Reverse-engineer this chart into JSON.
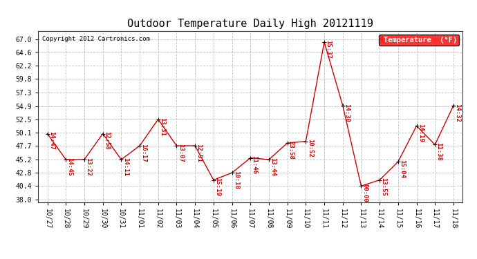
{
  "title": "Outdoor Temperature Daily High 20121119",
  "copyright": "Copyright 2012 Cartronics.com",
  "legend_label": "Temperature  (°F)",
  "dates": [
    "10/27",
    "10/28",
    "10/29",
    "10/30",
    "10/31",
    "11/01",
    "11/02",
    "11/03",
    "11/04",
    "11/05",
    "11/06",
    "11/07",
    "11/08",
    "11/09",
    "11/10",
    "11/11",
    "11/12",
    "11/13",
    "11/14",
    "11/15",
    "11/16",
    "11/17",
    "11/18"
  ],
  "temps": [
    49.9,
    45.2,
    45.2,
    49.9,
    45.2,
    47.7,
    52.5,
    47.7,
    47.7,
    41.5,
    42.8,
    45.5,
    45.2,
    48.2,
    48.5,
    66.5,
    55.0,
    40.4,
    41.5,
    44.8,
    51.3,
    47.9,
    55.0
  ],
  "time_labels": [
    "14:47",
    "14:45",
    "13:22",
    "12:58",
    "14:11",
    "16:17",
    "13:31",
    "13:07",
    "12:51",
    "15:19",
    "10:18",
    "11:46",
    "13:44",
    "23:58",
    "10:52",
    "15:37",
    "14:30",
    "00:00",
    "13:55",
    "15:04",
    "14:19",
    "11:38",
    "14:32"
  ],
  "yticks": [
    38.0,
    40.4,
    42.8,
    45.2,
    47.7,
    50.1,
    52.5,
    54.9,
    57.3,
    59.8,
    62.2,
    64.6,
    67.0
  ],
  "ylim": [
    37.5,
    68.5
  ],
  "line_color": "#cc0000",
  "grid_color": "#c0c0c0",
  "background_color": "#ffffff",
  "title_fontsize": 11,
  "anno_fontsize": 6.5,
  "tick_fontsize": 7
}
